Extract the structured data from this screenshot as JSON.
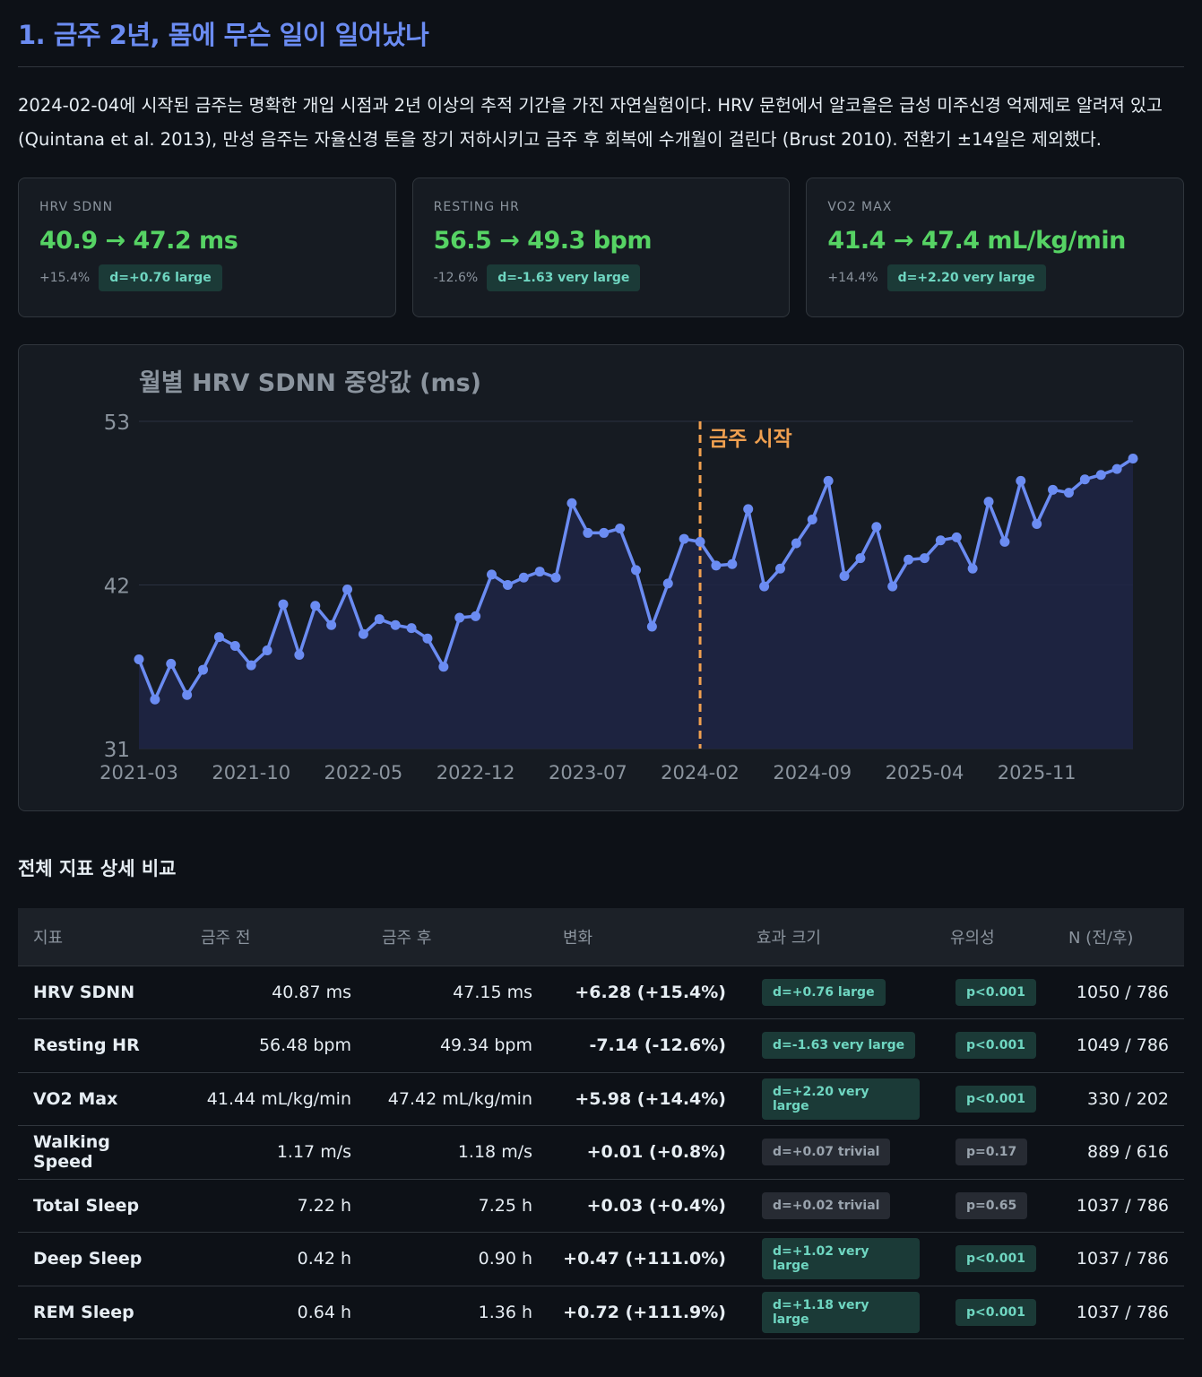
{
  "section": {
    "title": "1. 금주 2년, 몸에 무슨 일이 일어났나",
    "intro": "2024-02-04에 시작된 금주는 명확한 개입 시점과 2년 이상의 추적 기간을 가진 자연실험이다. HRV 문헌에서 알코올은 급성 미주신경 억제제로 알려져 있고 (Quintana et al. 2013), 만성 음주는 자율신경 톤을 장기 저하시키고 금주 후 회복에 수개월이 걸린다 (Brust 2010). 전환기 ±14일은 제외했다."
  },
  "cards": [
    {
      "label": "HRV SDNN",
      "value": "40.9 → 47.2 ms",
      "pct": "+15.4%",
      "badge": "d=+0.76 large"
    },
    {
      "label": "RESTING HR",
      "value": "56.5 → 49.3 bpm",
      "pct": "-12.6%",
      "badge": "d=-1.63 very large"
    },
    {
      "label": "VO2 MAX",
      "value": "41.4 → 47.4 mL/kg/min",
      "pct": "+14.4%",
      "badge": "d=+2.20 very large"
    }
  ],
  "chart_data": {
    "type": "line",
    "title": "월별 HRV SDNN 중앙값 (ms)",
    "xlabel": "",
    "ylabel": "",
    "ylim": [
      31,
      53
    ],
    "yticks": [
      "53",
      "42",
      "31"
    ],
    "xticks": [
      "2021-03",
      "2021-10",
      "2022-05",
      "2022-12",
      "2023-07",
      "2024-02",
      "2024-09",
      "2025-04",
      "2025-11"
    ],
    "annotation": {
      "label": "금주 시작",
      "x": "2024-02",
      "color": "#f0a050"
    },
    "line_color": "#6b8cf2",
    "grid": true,
    "x": [
      "2021-03",
      "2021-04",
      "2021-05",
      "2021-06",
      "2021-07",
      "2021-08",
      "2021-09",
      "2021-10",
      "2021-11",
      "2021-12",
      "2022-01",
      "2022-02",
      "2022-03",
      "2022-04",
      "2022-05",
      "2022-06",
      "2022-07",
      "2022-08",
      "2022-09",
      "2022-10",
      "2022-11",
      "2022-12",
      "2023-01",
      "2023-02",
      "2023-03",
      "2023-04",
      "2023-05",
      "2023-06",
      "2023-07",
      "2023-08",
      "2023-09",
      "2023-10",
      "2023-11",
      "2023-12",
      "2024-01",
      "2024-02",
      "2024-03",
      "2024-04",
      "2024-05",
      "2024-06",
      "2024-07",
      "2024-08",
      "2024-09",
      "2024-10",
      "2024-11",
      "2024-12",
      "2025-01",
      "2025-02",
      "2025-03",
      "2025-04",
      "2025-05",
      "2025-06",
      "2025-07",
      "2025-08",
      "2025-09",
      "2025-10",
      "2025-11",
      "2025-12",
      "2026-01",
      "2026-02",
      "2026-03",
      "2026-04",
      "2026-05"
    ],
    "values": [
      37.0,
      34.3,
      36.7,
      34.6,
      36.3,
      38.5,
      37.9,
      36.6,
      37.6,
      40.7,
      37.3,
      40.6,
      39.3,
      41.7,
      38.7,
      39.7,
      39.3,
      39.1,
      38.4,
      36.5,
      39.8,
      39.9,
      42.7,
      42.0,
      42.5,
      42.9,
      42.5,
      47.5,
      45.5,
      45.5,
      45.8,
      43.0,
      39.2,
      42.1,
      45.1,
      44.9,
      43.3,
      43.4,
      47.1,
      41.9,
      43.1,
      44.8,
      46.4,
      49.0,
      42.6,
      43.8,
      45.9,
      41.9,
      43.7,
      43.8,
      45.0,
      45.2,
      43.1,
      47.6,
      44.9,
      49.0,
      46.1,
      48.4,
      48.2,
      49.1,
      49.4,
      49.8,
      50.5
    ]
  },
  "table": {
    "title": "전체 지표 상세 비교",
    "headers": [
      "지표",
      "금주 전",
      "금주 후",
      "변화",
      "효과 크기",
      "유의성",
      "N (전/후)"
    ],
    "rows": [
      {
        "name": "HRV SDNN",
        "before": "40.87 ms",
        "after": "47.15 ms",
        "change": "+6.28 (+15.4%)",
        "effect": "d=+0.76 large",
        "sig": "p<0.001",
        "n": "1050 / 786"
      },
      {
        "name": "Resting HR",
        "before": "56.48 bpm",
        "after": "49.34 bpm",
        "change": "-7.14 (-12.6%)",
        "effect": "d=-1.63 very large",
        "sig": "p<0.001",
        "n": "1049 / 786"
      },
      {
        "name": "VO2 Max",
        "before": "41.44 mL/kg/min",
        "after": "47.42 mL/kg/min",
        "change": "+5.98 (+14.4%)",
        "effect": "d=+2.20 very large",
        "sig": "p<0.001",
        "n": "330 / 202"
      },
      {
        "name": "Walking Speed",
        "before": "1.17 m/s",
        "after": "1.18 m/s",
        "change": "+0.01 (+0.8%)",
        "effect": "d=+0.07 trivial",
        "sig": "p=0.17",
        "n": "889 / 616"
      },
      {
        "name": "Total Sleep",
        "before": "7.22 h",
        "after": "7.25 h",
        "change": "+0.03 (+0.4%)",
        "effect": "d=+0.02 trivial",
        "sig": "p=0.65",
        "n": "1037 / 786"
      },
      {
        "name": "Deep Sleep",
        "before": "0.42 h",
        "after": "0.90 h",
        "change": "+0.47 (+111.0%)",
        "effect": "d=+1.02 very large",
        "sig": "p<0.001",
        "n": "1037 / 786"
      },
      {
        "name": "REM Sleep",
        "before": "0.64 h",
        "after": "1.36 h",
        "change": "+0.72 (+111.9%)",
        "effect": "d=+1.18 very large",
        "sig": "p<0.001",
        "n": "1037 / 786"
      }
    ]
  }
}
